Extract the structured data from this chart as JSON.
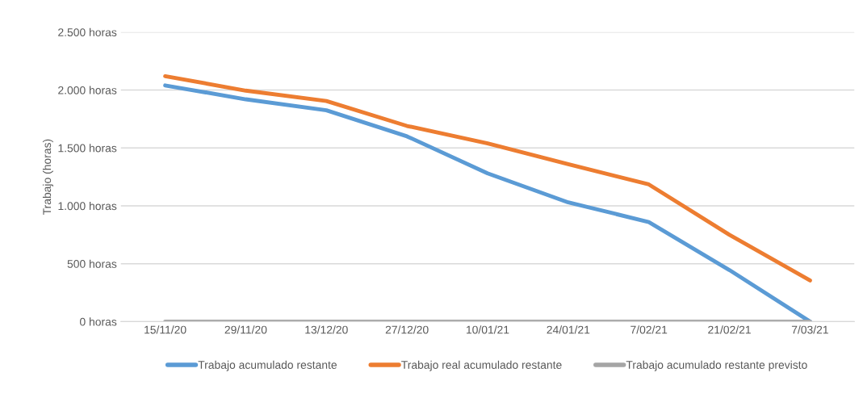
{
  "chart_data": {
    "type": "line",
    "ylabel": "Trabajo (horas)",
    "categories": [
      "15/11/20",
      "29/11/20",
      "13/12/20",
      "27/12/20",
      "10/01/21",
      "24/01/21",
      "7/02/21",
      "21/02/21",
      "7/03/21"
    ],
    "series": [
      {
        "name": "Trabajo acumulado restante",
        "color": "#5b9bd5",
        "values": [
          2040,
          1920,
          1825,
          1600,
          1280,
          1030,
          860,
          445,
          0
        ]
      },
      {
        "name": "Trabajo real acumulado restante",
        "color": "#ed7d31",
        "values": [
          2120,
          1995,
          1905,
          1690,
          1540,
          1360,
          1185,
          750,
          355
        ]
      },
      {
        "name": "Trabajo acumulado restante previsto",
        "color": "#a5a5a5",
        "values": [
          0,
          0,
          0,
          0,
          0,
          0,
          0,
          0,
          0
        ]
      }
    ],
    "ylim": [
      0,
      2500
    ],
    "yticks": [
      {
        "value": 0,
        "label": "0 horas"
      },
      {
        "value": 500,
        "label": "500 horas"
      },
      {
        "value": 1000,
        "label": "1.000 horas"
      },
      {
        "value": 1500,
        "label": "1.500 horas"
      },
      {
        "value": 2000,
        "label": "2.000 horas"
      },
      {
        "value": 2500,
        "label": "2.500 horas"
      }
    ],
    "grid": "y",
    "legend": "bottom",
    "marker": "none",
    "line_style": "solid"
  }
}
